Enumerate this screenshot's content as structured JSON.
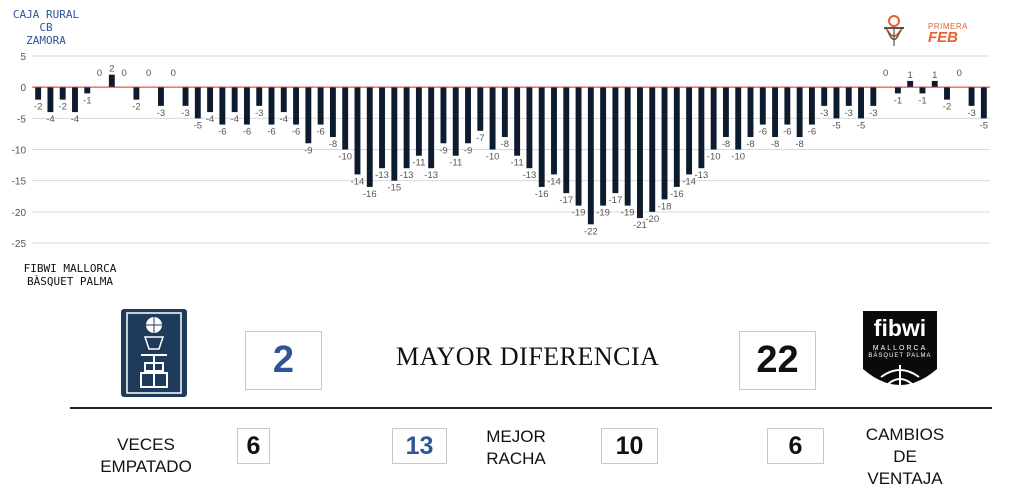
{
  "home_team": {
    "line1": "CAJA RURAL CB",
    "line2": "ZAMORA"
  },
  "away_team": {
    "line1": "FIBWI MALLORCA",
    "line2": "BÀSQUET PALMA"
  },
  "league_logo": {
    "line1": "PRIMERA",
    "line2": "FEB"
  },
  "away_logo": {
    "name": "fibwi",
    "sub": "MALLORCA",
    "sub2": "BÀSQUET PALMA"
  },
  "colors": {
    "bar": "#0d1b2e",
    "zero_line": "#e03030",
    "grid": "#d9d9d9",
    "accent_blue": "#2f5597",
    "league_orange": "#e8602c",
    "home_logo_bg": "#1f3b5c"
  },
  "stats": {
    "title": "MAYOR DIFERENCIA",
    "max_diff_home": "2",
    "max_diff_away": "22",
    "ties_label_1": "VECES",
    "ties_label_2": "EMPATADO",
    "ties_value": "6",
    "best_run_home": "13",
    "best_run_label_1": "MEJOR",
    "best_run_label_2": "RACHA",
    "best_run_away": "10",
    "lead_changes_value": "6",
    "lead_changes_label_1": "CAMBIOS",
    "lead_changes_label_2": "DE",
    "lead_changes_label_3": "VENTAJA"
  },
  "chart_data": {
    "type": "bar",
    "ylim": [
      -25,
      5
    ],
    "yticks": [
      "5",
      "0",
      "-5",
      "-10",
      "-15",
      "-20",
      "-25"
    ],
    "grid": true,
    "values": [
      -2,
      -4,
      -2,
      -4,
      -1,
      0,
      2,
      0,
      -2,
      0,
      -3,
      0,
      -3,
      -5,
      -4,
      -6,
      -4,
      -6,
      -3,
      -6,
      -4,
      -6,
      -9,
      -6,
      -8,
      -10,
      -14,
      -16,
      -13,
      -15,
      -13,
      -11,
      -13,
      -9,
      -11,
      -9,
      -7,
      -10,
      -8,
      -11,
      -13,
      -16,
      -14,
      -17,
      -19,
      -22,
      -19,
      -17,
      -19,
      -21,
      -20,
      -18,
      -16,
      -14,
      -13,
      -10,
      -8,
      -10,
      -8,
      -6,
      -8,
      -6,
      -8,
      -6,
      -3,
      -5,
      -3,
      -5,
      -3,
      0,
      -1,
      1,
      -1,
      1,
      -2,
      0,
      -3,
      -5
    ]
  }
}
